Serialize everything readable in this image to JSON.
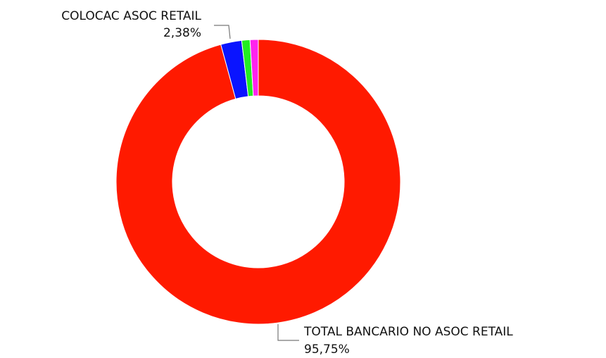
{
  "chart_data": {
    "type": "pie",
    "donut": true,
    "title": "",
    "legend": "none",
    "slices": [
      {
        "name": "TOTAL BANCARIO NO ASOC RETAIL",
        "value": 95.75,
        "label": "95,75%",
        "color": "#ff1a00",
        "labeled": true
      },
      {
        "name": "COLOCAC ASOC RETAIL",
        "value": 2.38,
        "label": "2,38%",
        "color": "#0a14ff",
        "labeled": true
      },
      {
        "name": "",
        "value": 0.94,
        "label": "",
        "color": "#22ee22",
        "labeled": false
      },
      {
        "name": "",
        "value": 0.93,
        "label": "",
        "color": "#ff22ee",
        "labeled": false
      }
    ]
  }
}
